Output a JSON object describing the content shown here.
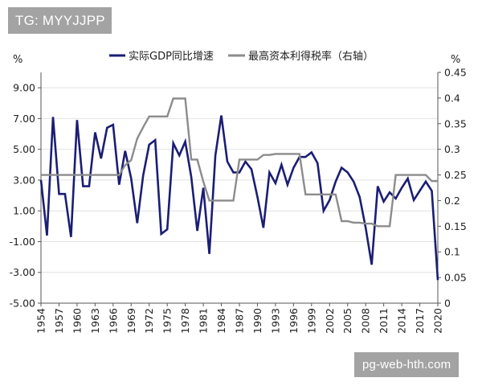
{
  "watermark_top": "TG: MYYJJPP",
  "watermark_bottom": "pg-web-hth.com",
  "chart_data": {
    "type": "line",
    "y_left_unit": "%",
    "y_right_unit": "%",
    "y_left_ticks": [
      "9.00",
      "7.00",
      "5.00",
      "3.00",
      "1.00",
      "-1.00",
      "-3.00",
      "-5.00"
    ],
    "y_right_ticks": [
      "0.45",
      "0.4",
      "0.35",
      "0.3",
      "0.25",
      "0.2",
      "0.15",
      "0.1",
      "0.05",
      "0"
    ],
    "ylim_left": [
      -5,
      10
    ],
    "ylim_right": [
      0,
      0.45
    ],
    "x_tick_labels": [
      "1954",
      "1957",
      "1960",
      "1963",
      "1966",
      "1969",
      "1972",
      "1975",
      "1978",
      "1981",
      "1984",
      "1987",
      "1990",
      "1993",
      "1996",
      "1999",
      "2002",
      "2005",
      "2008",
      "2011",
      "2014",
      "2017",
      "2020"
    ],
    "xlim": [
      1954,
      2020
    ],
    "legend_position": "top",
    "series": [
      {
        "name": "实际GDP同比增速",
        "axis": "left",
        "color": "#1b1e73",
        "x": [
          1954,
          1955,
          1956,
          1957,
          1958,
          1959,
          1960,
          1961,
          1962,
          1963,
          1964,
          1965,
          1966,
          1967,
          1968,
          1969,
          1970,
          1971,
          1972,
          1973,
          1974,
          1975,
          1976,
          1977,
          1978,
          1979,
          1980,
          1981,
          1982,
          1983,
          1984,
          1985,
          1986,
          1987,
          1988,
          1989,
          1990,
          1991,
          1992,
          1993,
          1994,
          1995,
          1996,
          1997,
          1998,
          1999,
          2000,
          2001,
          2002,
          2003,
          2004,
          2005,
          2006,
          2007,
          2008,
          2009,
          2010,
          2011,
          2012,
          2013,
          2014,
          2015,
          2016,
          2017,
          2018,
          2019,
          2020
        ],
        "values": [
          3.0,
          -0.6,
          7.1,
          2.1,
          2.1,
          -0.7,
          6.9,
          2.6,
          2.6,
          6.1,
          4.4,
          6.4,
          6.6,
          2.7,
          4.9,
          3.1,
          0.2,
          3.3,
          5.3,
          5.6,
          -0.5,
          -0.2,
          5.4,
          4.6,
          5.5,
          3.2,
          -0.3,
          2.5,
          -1.8,
          4.6,
          7.2,
          4.2,
          3.5,
          3.5,
          4.2,
          3.7,
          1.9,
          -0.1,
          3.5,
          2.8,
          4.0,
          2.7,
          3.8,
          4.5,
          4.5,
          4.8,
          4.1,
          1.0,
          1.7,
          2.9,
          3.8,
          3.5,
          2.9,
          1.9,
          -0.1,
          -2.5,
          2.6,
          1.6,
          2.2,
          1.8,
          2.5,
          3.1,
          1.7,
          2.3,
          2.9,
          2.3,
          -3.5
        ]
      },
      {
        "name": "最高资本利得税率（右轴）",
        "axis": "right",
        "color": "#8c8c8c",
        "step": true,
        "x": [
          1954,
          1955,
          1956,
          1957,
          1958,
          1959,
          1960,
          1961,
          1962,
          1963,
          1964,
          1965,
          1966,
          1967,
          1968,
          1969,
          1970,
          1971,
          1972,
          1973,
          1974,
          1975,
          1976,
          1977,
          1978,
          1979,
          1980,
          1981,
          1982,
          1983,
          1984,
          1985,
          1986,
          1987,
          1988,
          1989,
          1990,
          1991,
          1992,
          1993,
          1994,
          1995,
          1996,
          1997,
          1998,
          1999,
          2000,
          2001,
          2002,
          2003,
          2004,
          2005,
          2006,
          2007,
          2008,
          2009,
          2010,
          2011,
          2012,
          2013,
          2014,
          2015,
          2016,
          2017,
          2018,
          2019,
          2020
        ],
        "values": [
          0.25,
          0.25,
          0.25,
          0.25,
          0.25,
          0.25,
          0.25,
          0.25,
          0.25,
          0.25,
          0.25,
          0.25,
          0.25,
          0.25,
          0.269,
          0.279,
          0.321,
          0.343,
          0.364,
          0.364,
          0.364,
          0.364,
          0.399,
          0.399,
          0.399,
          0.28,
          0.28,
          0.237,
          0.2,
          0.2,
          0.2,
          0.2,
          0.2,
          0.28,
          0.28,
          0.28,
          0.28,
          0.289,
          0.289,
          0.291,
          0.291,
          0.291,
          0.291,
          0.291,
          0.212,
          0.212,
          0.212,
          0.212,
          0.212,
          0.212,
          0.16,
          0.16,
          0.157,
          0.157,
          0.155,
          0.155,
          0.15,
          0.15,
          0.15,
          0.25,
          0.25,
          0.25,
          0.25,
          0.25,
          0.25,
          0.238,
          0.238
        ]
      }
    ]
  }
}
